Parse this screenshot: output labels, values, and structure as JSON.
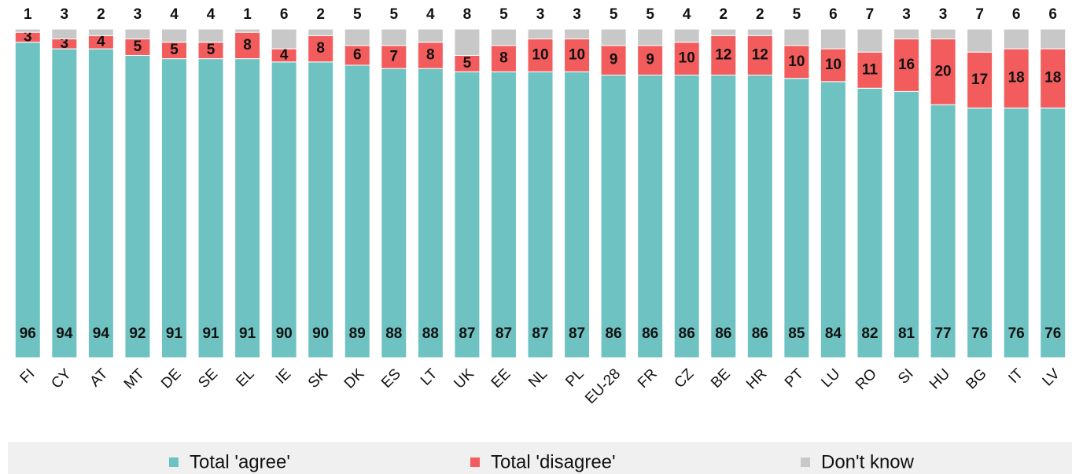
{
  "chart_data": {
    "type": "stacked_bar",
    "categories": [
      "FI",
      "CY",
      "AT",
      "MT",
      "DE",
      "SE",
      "EL",
      "IE",
      "SK",
      "DK",
      "ES",
      "LT",
      "UK",
      "EE",
      "NL",
      "PL",
      "EU-28",
      "FR",
      "CZ",
      "BE",
      "HR",
      "PT",
      "LU",
      "RO",
      "SI",
      "HU",
      "BG",
      "IT",
      "LV"
    ],
    "series": [
      {
        "name": "Total 'agree'",
        "color": "#6fc2c2",
        "values": [
          96,
          94,
          94,
          92,
          91,
          91,
          91,
          90,
          90,
          89,
          88,
          88,
          87,
          87,
          87,
          87,
          86,
          86,
          86,
          86,
          86,
          85,
          84,
          82,
          81,
          77,
          76,
          76,
          76
        ]
      },
      {
        "name": "Total 'disagree'",
        "color": "#f25c5c",
        "values": [
          3,
          3,
          4,
          5,
          5,
          5,
          8,
          4,
          8,
          6,
          7,
          8,
          5,
          8,
          10,
          10,
          9,
          9,
          10,
          12,
          12,
          10,
          10,
          11,
          16,
          20,
          17,
          18,
          18
        ]
      },
      {
        "name": "Don't know",
        "color": "#c8c8c8",
        "values": [
          1,
          3,
          2,
          3,
          4,
          4,
          1,
          6,
          2,
          5,
          5,
          4,
          8,
          5,
          3,
          3,
          5,
          5,
          4,
          2,
          2,
          5,
          6,
          7,
          3,
          3,
          7,
          6,
          6
        ]
      }
    ],
    "ylim": [
      0,
      100
    ],
    "legend": "bottom"
  }
}
